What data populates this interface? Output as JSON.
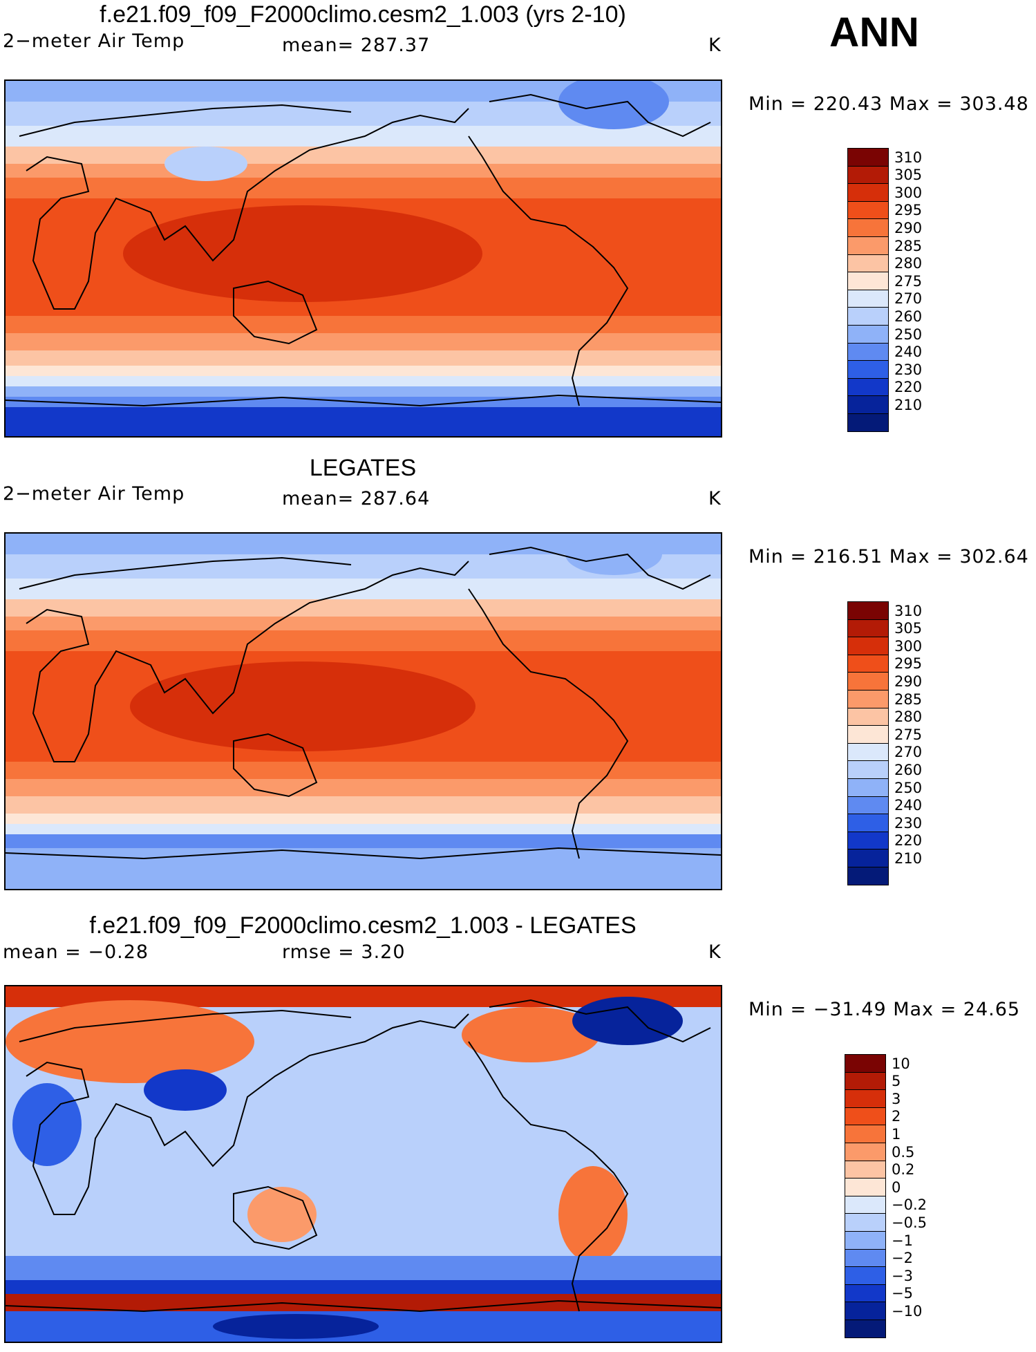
{
  "panel_top": {
    "title": "f.e21.f09_f09_F2000climo.cesm2_1.003 (yrs 2-10)",
    "variable": "2−meter Air Temp",
    "mean_label": "mean= 287.37",
    "units": "K",
    "minmax": "Min = 220.43 Max = 303.48"
  },
  "panel_mid": {
    "title": "LEGATES",
    "variable": "2−meter Air Temp",
    "mean_label": "mean= 287.64",
    "units": "K",
    "minmax": "Min = 216.51 Max = 302.64"
  },
  "panel_bot": {
    "title": "f.e21.f09_f09_F2000climo.cesm2_1.003 - LEGATES",
    "mean_label": "mean =   −0.28",
    "rmse_label": "rmse =    3.20",
    "units": "K",
    "minmax": "Min = −31.49 Max =  24.65"
  },
  "season": "ANN",
  "colorbar_abs": {
    "ticks": [
      "310",
      "305",
      "300",
      "295",
      "290",
      "285",
      "280",
      "275",
      "270",
      "260",
      "250",
      "240",
      "230",
      "220",
      "210"
    ],
    "colors": [
      "#7a0403",
      "#b31b06",
      "#d62f0a",
      "#ef4f1a",
      "#f7743a",
      "#fb9a6a",
      "#fcc4a4",
      "#fde6d6",
      "#dbe8fb",
      "#b9d0fb",
      "#8fb2f8",
      "#5f8af1",
      "#2e5fe6",
      "#1238c9",
      "#06239b",
      "#041a78"
    ]
  },
  "colorbar_diff": {
    "ticks": [
      "10",
      "5",
      "3",
      "2",
      "1",
      "0.5",
      "0.2",
      "0",
      "−0.2",
      "−0.5",
      "−1",
      "−2",
      "−3",
      "−5",
      "−10"
    ],
    "colors": [
      "#7a0403",
      "#b31b06",
      "#d62f0a",
      "#ef4f1a",
      "#f7743a",
      "#fb9a6a",
      "#fcc4a4",
      "#fde6d6",
      "#dbe8fb",
      "#b9d0fb",
      "#8fb2f8",
      "#5f8af1",
      "#2e5fe6",
      "#1238c9",
      "#06239b",
      "#041a78"
    ]
  }
}
